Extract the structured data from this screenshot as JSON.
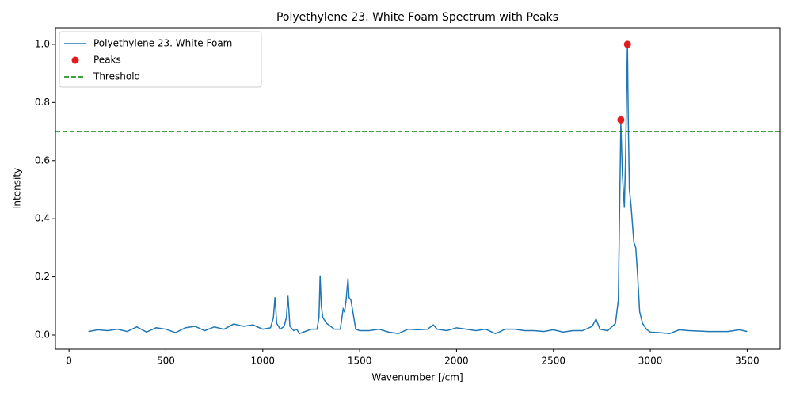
{
  "chart_data": {
    "type": "line",
    "title": "Polyethylene 23. White Foam Spectrum with Peaks",
    "x_label": "Wavenumber [/cm]",
    "y_label": "Intensity",
    "xlim": [
      -70,
      3670
    ],
    "ylim": [
      -0.049,
      1.057
    ],
    "xticks": [
      0,
      500,
      1000,
      1500,
      2000,
      2500,
      3000,
      3500
    ],
    "yticks": [
      {
        "value": 0,
        "label": "0.0"
      },
      0.2,
      0.4,
      0.6,
      0.8,
      {
        "value": 1,
        "label": "1.0"
      }
    ],
    "legend": "upper left",
    "series": [
      {
        "name": "Polyethylene 23. White Foam",
        "type": "line",
        "color": "#1f77b4",
        "x": [
          100,
          150,
          200,
          250,
          300,
          350,
          400,
          450,
          500,
          550,
          600,
          650,
          700,
          750,
          800,
          850,
          900,
          950,
          1000,
          1040,
          1055,
          1063,
          1072,
          1090,
          1110,
          1122,
          1130,
          1140,
          1160,
          1175,
          1190,
          1250,
          1280,
          1290,
          1296,
          1302,
          1310,
          1330,
          1370,
          1400,
          1415,
          1422,
          1430,
          1440,
          1445,
          1455,
          1465,
          1480,
          1500,
          1550,
          1600,
          1650,
          1700,
          1750,
          1800,
          1850,
          1880,
          1900,
          1950,
          2000,
          2050,
          2100,
          2150,
          2200,
          2220,
          2250,
          2300,
          2350,
          2400,
          2450,
          2500,
          2550,
          2600,
          2650,
          2700,
          2720,
          2740,
          2780,
          2820,
          2835,
          2842,
          2848,
          2856,
          2866,
          2872,
          2878,
          2882,
          2886,
          2892,
          2900,
          2915,
          2925,
          2935,
          2945,
          2960,
          2980,
          3000,
          3050,
          3100,
          3150,
          3200,
          3300,
          3400,
          3460,
          3500
        ],
        "values": [
          0.012,
          0.018,
          0.015,
          0.02,
          0.012,
          0.028,
          0.01,
          0.025,
          0.02,
          0.008,
          0.025,
          0.03,
          0.015,
          0.028,
          0.02,
          0.038,
          0.03,
          0.035,
          0.02,
          0.025,
          0.06,
          0.13,
          0.04,
          0.02,
          0.03,
          0.06,
          0.135,
          0.03,
          0.015,
          0.02,
          0.005,
          0.02,
          0.02,
          0.06,
          0.205,
          0.1,
          0.06,
          0.04,
          0.02,
          0.02,
          0.09,
          0.08,
          0.12,
          0.195,
          0.13,
          0.12,
          0.08,
          0.02,
          0.015,
          0.015,
          0.02,
          0.01,
          0.005,
          0.02,
          0.018,
          0.02,
          0.035,
          0.02,
          0.015,
          0.025,
          0.02,
          0.015,
          0.02,
          0.005,
          0.01,
          0.02,
          0.02,
          0.015,
          0.015,
          0.012,
          0.018,
          0.01,
          0.015,
          0.015,
          0.03,
          0.055,
          0.02,
          0.015,
          0.04,
          0.12,
          0.45,
          0.73,
          0.55,
          0.44,
          0.6,
          0.85,
          1.0,
          0.75,
          0.5,
          0.45,
          0.32,
          0.3,
          0.2,
          0.08,
          0.04,
          0.02,
          0.01,
          0.008,
          0.005,
          0.018,
          0.015,
          0.012,
          0.012,
          0.018,
          0.012
        ]
      },
      {
        "name": "Peaks",
        "type": "scatter",
        "color": "#e41a1c",
        "x": [
          2848,
          2882
        ],
        "values": [
          0.74,
          1.0
        ]
      },
      {
        "name": "Threshold",
        "type": "hline",
        "color": "#008000",
        "linestyle": "dashed",
        "values": [
          0.7
        ]
      }
    ]
  }
}
